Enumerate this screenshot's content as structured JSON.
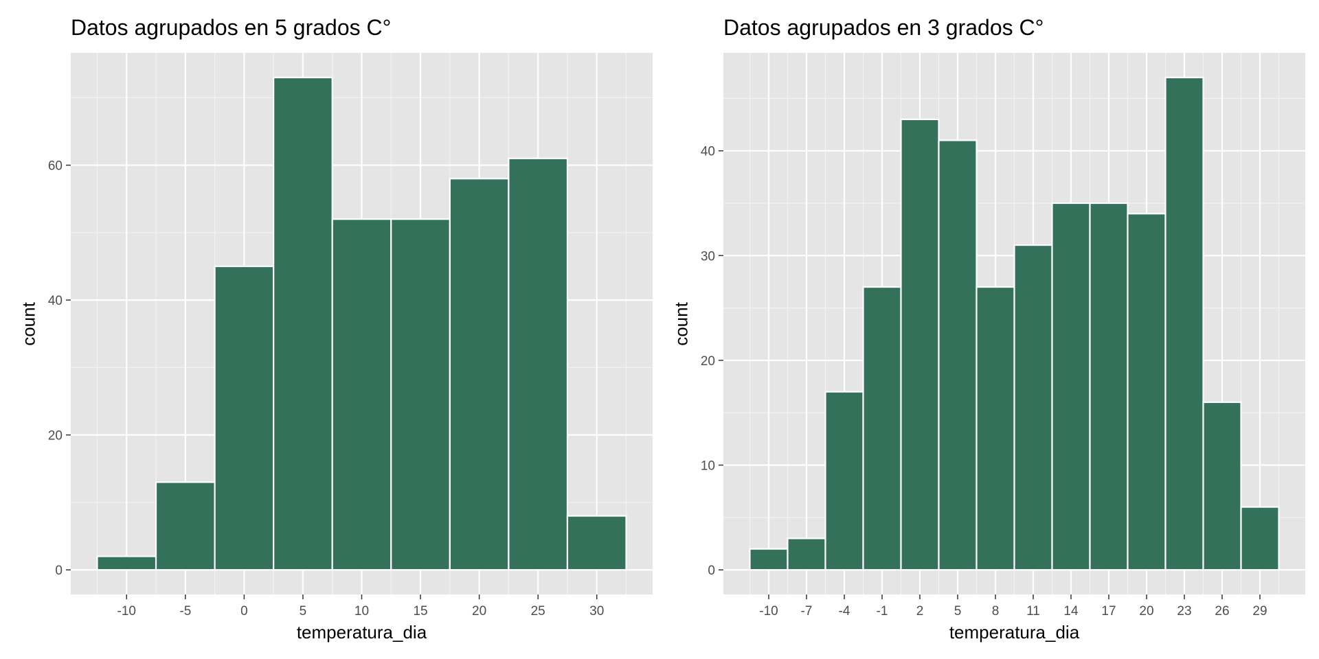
{
  "chart_data": [
    {
      "type": "bar",
      "title": "Datos agrupados en 5 grados C°",
      "xlabel": "temperatura_dia",
      "ylabel": "count",
      "bin_width": 5,
      "bins": [
        {
          "center": -10,
          "count": 2
        },
        {
          "center": -5,
          "count": 13
        },
        {
          "center": 0,
          "count": 45
        },
        {
          "center": 5,
          "count": 73
        },
        {
          "center": 10,
          "count": 52
        },
        {
          "center": 15,
          "count": 52
        },
        {
          "center": 20,
          "count": 58
        },
        {
          "center": 25,
          "count": 61
        },
        {
          "center": 30,
          "count": 8
        }
      ],
      "x_ticks": [
        -10,
        -5,
        0,
        5,
        10,
        15,
        20,
        25,
        30
      ],
      "x_tick_labels": [
        "-10",
        "-5",
        "0",
        "5",
        "10",
        "15",
        "20",
        "25",
        "30"
      ],
      "y_ticks": [
        0,
        20,
        40,
        60
      ],
      "y_tick_labels": [
        "0",
        "20",
        "40",
        "60"
      ],
      "xlim": [
        -14.75,
        34.75
      ],
      "ylim": [
        -3.65,
        76.65
      ],
      "grid": true,
      "bar_color": "#33715A",
      "panel_color": "#E5E5E5"
    },
    {
      "type": "bar",
      "title": "Datos agrupados en 3 grados C°",
      "xlabel": "temperatura_dia",
      "ylabel": "count",
      "bin_width": 3,
      "bins": [
        {
          "center": -10,
          "count": 2
        },
        {
          "center": -7,
          "count": 3
        },
        {
          "center": -4,
          "count": 17
        },
        {
          "center": -1,
          "count": 27
        },
        {
          "center": 2,
          "count": 43
        },
        {
          "center": 5,
          "count": 41
        },
        {
          "center": 8,
          "count": 27
        },
        {
          "center": 11,
          "count": 31
        },
        {
          "center": 14,
          "count": 35
        },
        {
          "center": 17,
          "count": 35
        },
        {
          "center": 20,
          "count": 34
        },
        {
          "center": 23,
          "count": 47
        },
        {
          "center": 26,
          "count": 16
        },
        {
          "center": 29,
          "count": 6
        }
      ],
      "x_ticks": [
        -10,
        -7,
        -4,
        -1,
        2,
        5,
        8,
        11,
        14,
        17,
        20,
        23,
        26,
        29
      ],
      "x_tick_labels": [
        "-10",
        "-7",
        "-4",
        "-1",
        "2",
        "5",
        "8",
        "11",
        "14",
        "17",
        "20",
        "23",
        "26",
        "29"
      ],
      "y_ticks": [
        0,
        10,
        20,
        30,
        40
      ],
      "y_tick_labels": [
        "0",
        "10",
        "20",
        "30",
        "40"
      ],
      "xlim": [
        -13.6,
        32.6
      ],
      "ylim": [
        -2.35,
        49.35
      ],
      "grid": true,
      "bar_color": "#33715A",
      "panel_color": "#E5E5E5"
    }
  ]
}
